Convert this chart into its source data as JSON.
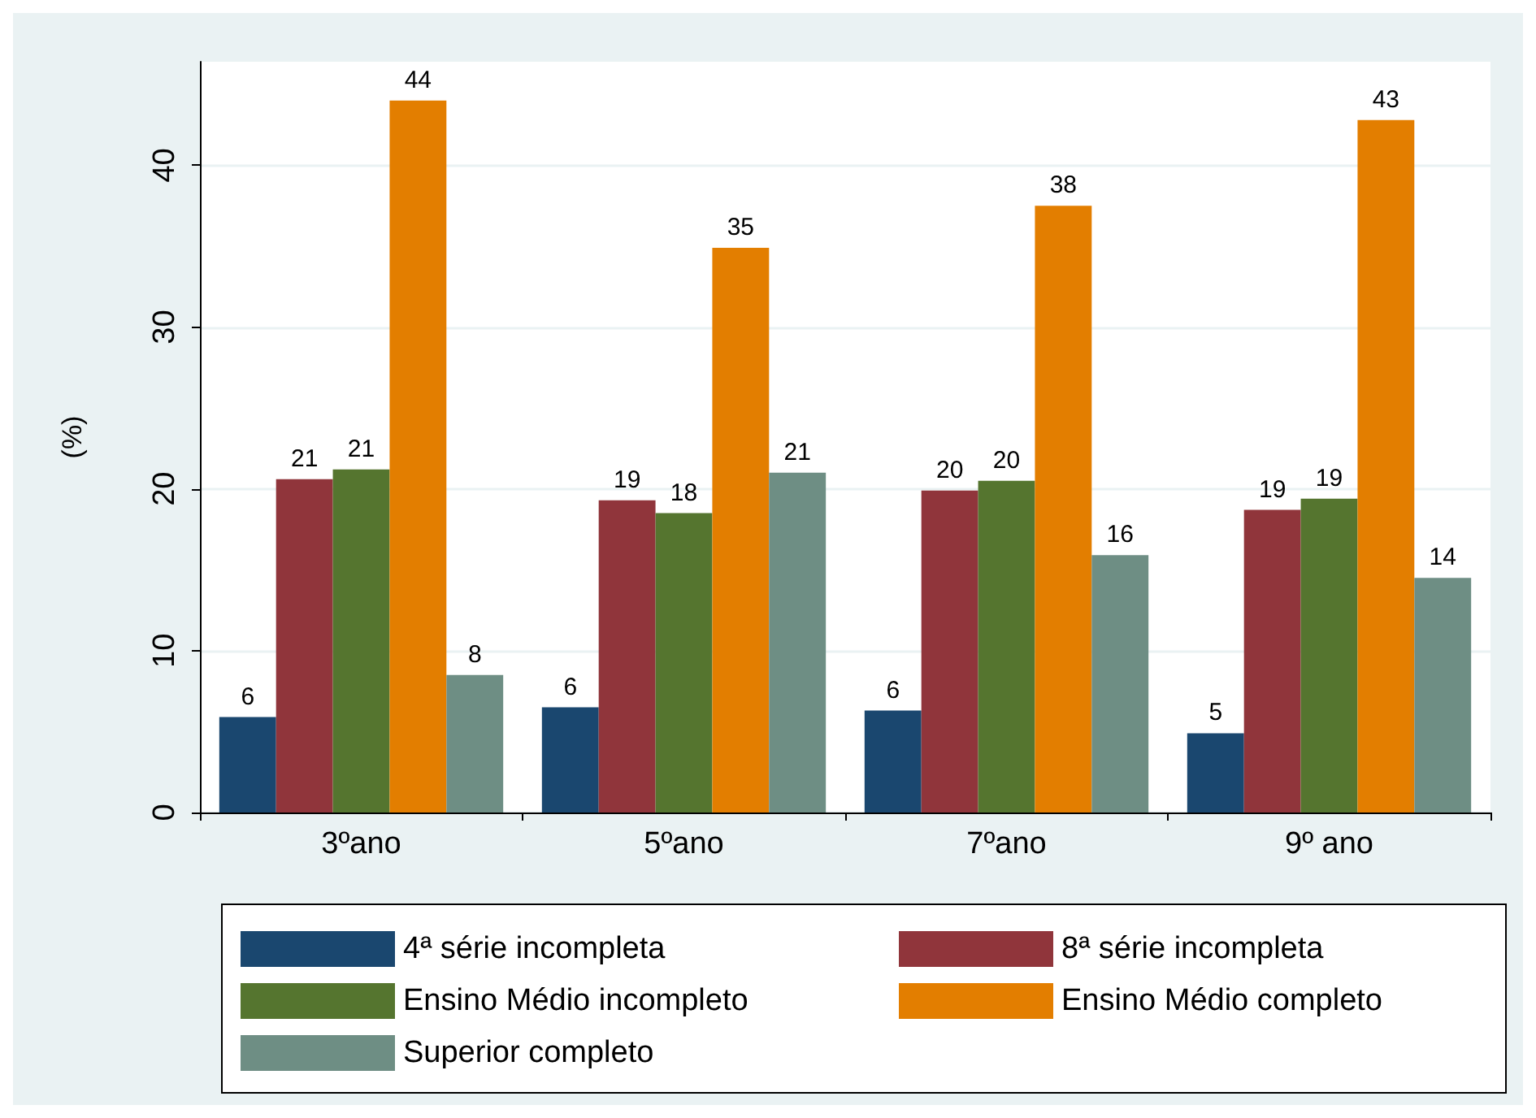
{
  "chart_data": {
    "type": "bar",
    "ylabel": "(%)",
    "categories": [
      "3ºano",
      "5ºano",
      "7ºano",
      "9º ano"
    ],
    "series": [
      {
        "name": "4ª série incompleta",
        "color": "#1a476f",
        "values": [
          5.9,
          6.5,
          6.3,
          4.9
        ],
        "value_labels": [
          "6",
          "6",
          "6",
          "5"
        ]
      },
      {
        "name": "8ª série incompleta",
        "color": "#90353b",
        "values": [
          20.6,
          19.3,
          19.9,
          18.7
        ],
        "value_labels": [
          "21",
          "19",
          "20",
          "19"
        ]
      },
      {
        "name": "Ensino Médio incompleto",
        "color": "#55752f",
        "values": [
          21.2,
          18.5,
          20.5,
          19.4
        ],
        "value_labels": [
          "21",
          "18",
          "20",
          "19"
        ]
      },
      {
        "name": "Ensino Médio completo",
        "color": "#e37e00",
        "values": [
          44.0,
          34.9,
          37.5,
          42.8
        ],
        "value_labels": [
          "44",
          "35",
          "38",
          "43"
        ]
      },
      {
        "name": "Superior completo",
        "color": "#6e8e84",
        "values": [
          8.5,
          21.0,
          15.9,
          14.5
        ],
        "value_labels": [
          "8",
          "21",
          "16",
          "14"
        ]
      }
    ],
    "ylim": [
      0,
      46.4
    ],
    "yticks": [
      0,
      10,
      20,
      30,
      40
    ],
    "grid": "y",
    "legend": "bottom"
  }
}
